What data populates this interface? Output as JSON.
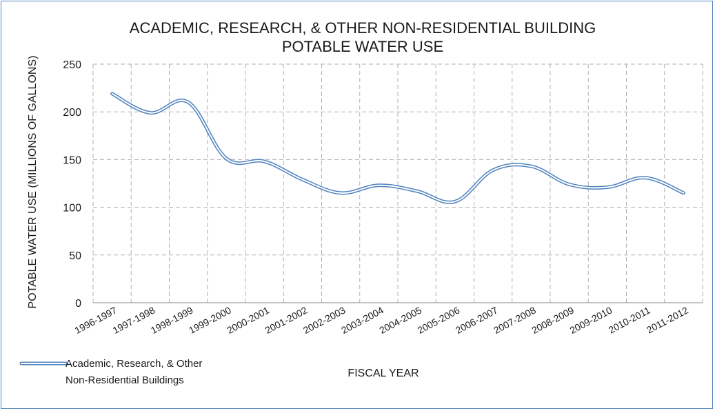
{
  "chart_data": {
    "type": "line",
    "title": [
      "ACADEMIC, RESEARCH, & OTHER NON-RESIDENTIAL BUILDING",
      "POTABLE WATER USE"
    ],
    "xlabel": "FISCAL YEAR",
    "ylabel": "POTABLE WATER USE (MILLIONS OF GALLONS)",
    "ylim": [
      0,
      250
    ],
    "yticks": [
      "0",
      "50",
      "100",
      "150",
      "200",
      "250"
    ],
    "grid": true,
    "legend_position": "bottom-left",
    "categories": [
      "1996-1997",
      "1997-1998",
      "1998-1999",
      "1999-2000",
      "2000-2001",
      "2001-2002",
      "2002-2003",
      "2003-2004",
      "2004-2005",
      "2005-2006",
      "2006-2007",
      "2007-2008",
      "2008-2009",
      "2009-2010",
      "2010-2011",
      "2011-2012"
    ],
    "series": [
      {
        "name": [
          "Academic, Research, & Other",
          "Non-Residential Buildings"
        ],
        "values": [
          219,
          199,
          210,
          151,
          148,
          129,
          115,
          123,
          117,
          106,
          139,
          143,
          124,
          121,
          131,
          115
        ],
        "color": "#4f81bd"
      }
    ]
  }
}
